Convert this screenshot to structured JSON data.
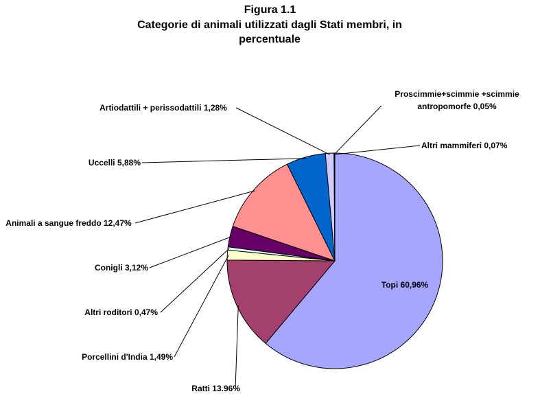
{
  "chart_data": {
    "type": "pie",
    "title": "Figura 1.1",
    "subtitle": "Categorie di animali utilizzati dagli Stati membri, in percentuale",
    "categories": [
      "Topi",
      "Ratti",
      "Porcellini d'India",
      "Altri roditori",
      "Conigli",
      "Animali a sangue freddo",
      "Uccelli",
      "Artiodattili + perissodattili",
      "Proscimmie+scimmie +scimmie antropomorfe",
      "Altri mammiferi"
    ],
    "values": [
      60.96,
      13.96,
      1.49,
      0.47,
      3.12,
      12.47,
      5.88,
      1.28,
      0.05,
      0.07
    ],
    "value_labels": [
      "60,96%",
      "13.96%",
      "1,49%",
      "0,47%",
      "3,12%",
      "12,47%",
      "5,88%",
      "1,28%",
      "0,05%",
      "0,07%"
    ],
    "colors": [
      "#a6a6ff",
      "#a3406e",
      "#ffffcc",
      "#ddffff",
      "#660066",
      "#ff9191",
      "#0066cc",
      "#ccccff",
      "#000080",
      "#ccffcc"
    ]
  }
}
